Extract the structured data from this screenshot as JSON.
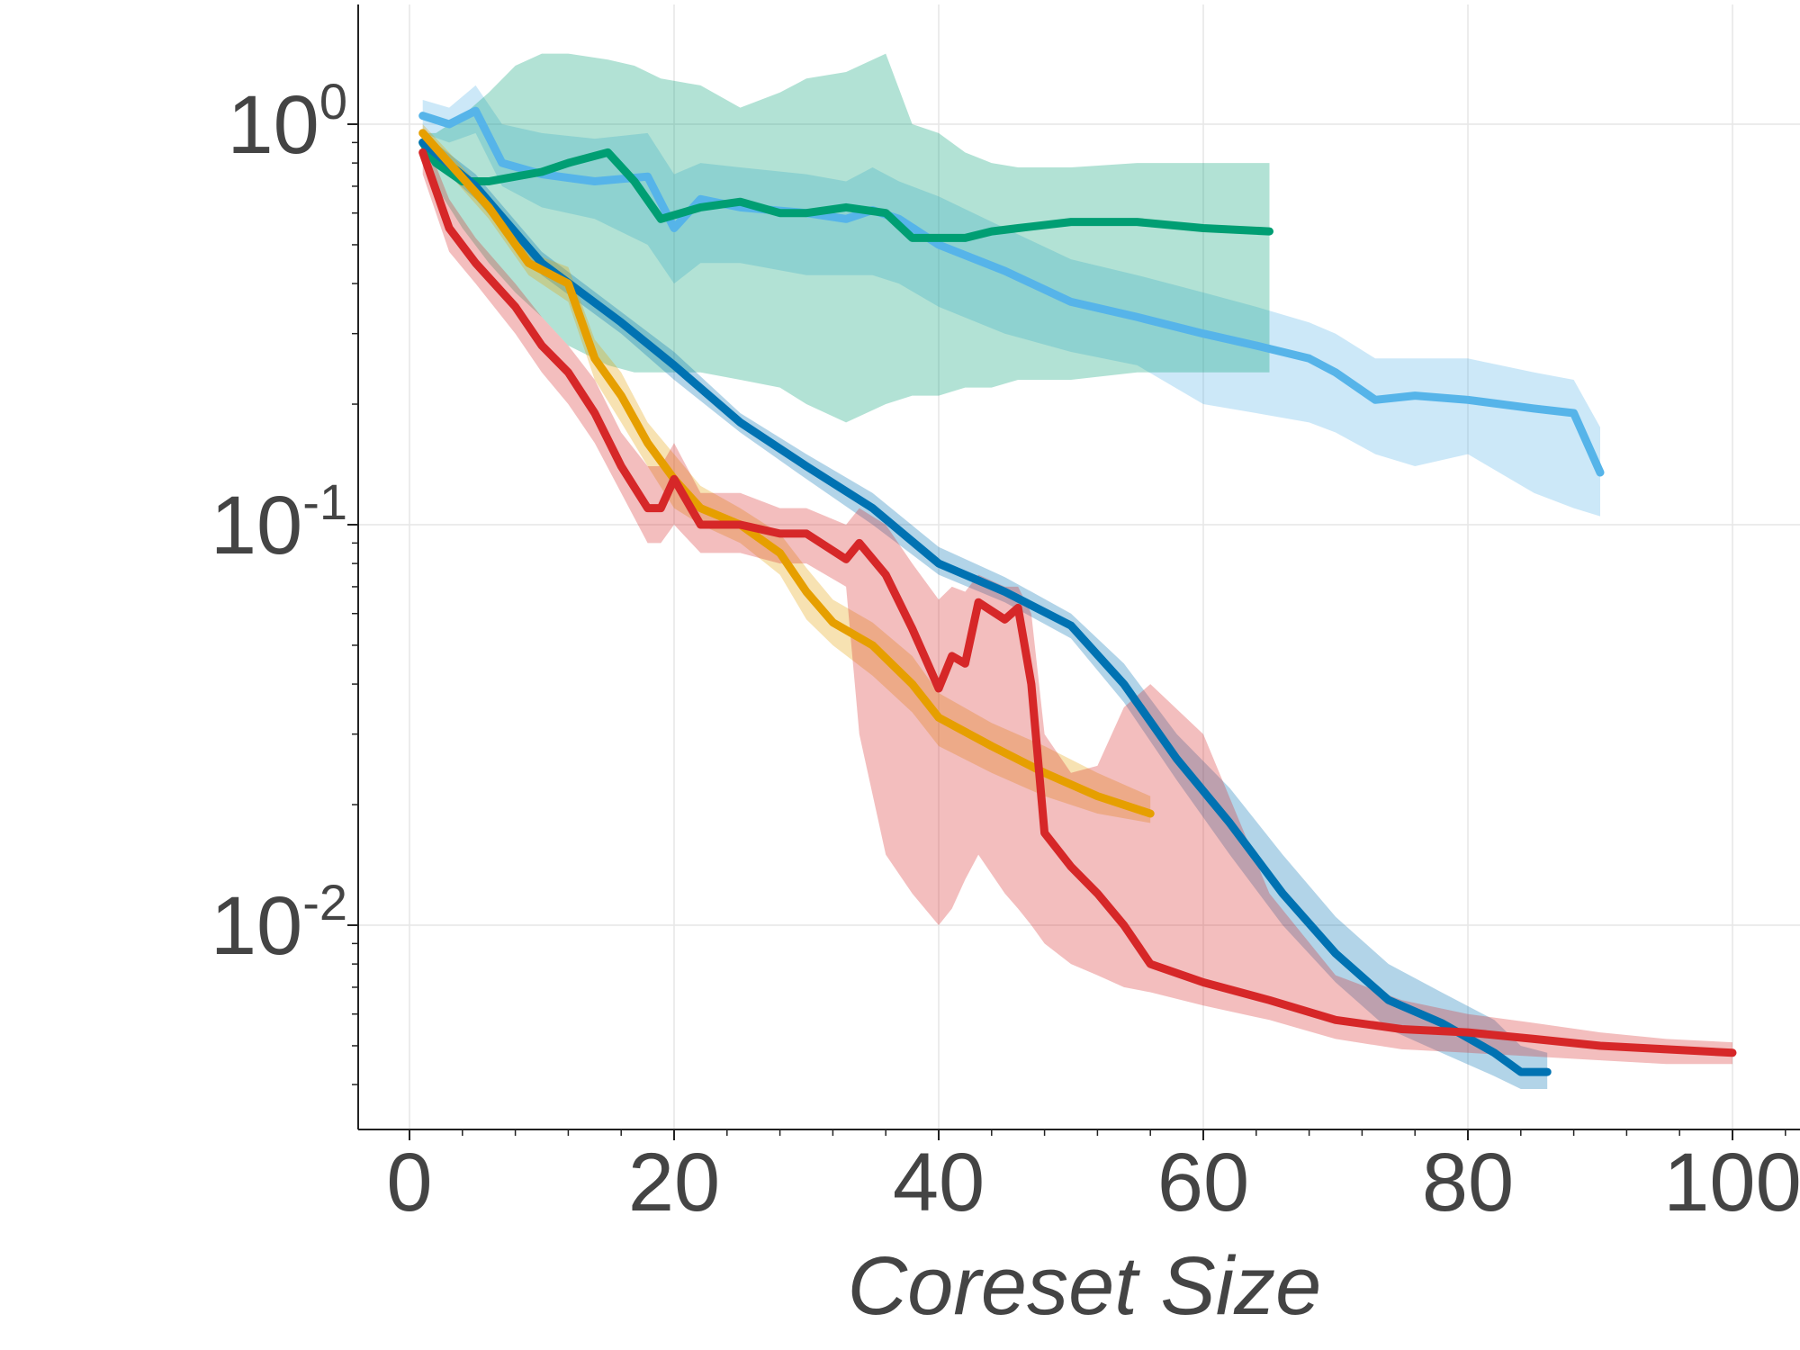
{
  "chart_data": {
    "type": "line",
    "title": "",
    "xlabel": "Coreset Size",
    "ylabel": "",
    "xlim": [
      -4,
      105
    ],
    "ylim": [
      0.0035,
      2.1
    ],
    "y_scale": "log",
    "grid": true,
    "legend": "none",
    "x_ticks": [
      0,
      20,
      40,
      60,
      80,
      100
    ],
    "x_tick_labels": [
      "0",
      "20",
      "40",
      "60",
      "80",
      "100"
    ],
    "y_ticks": [
      1,
      0.1,
      0.01
    ],
    "y_tick_labels": [
      {
        "base": "10",
        "exp": "0"
      },
      {
        "base": "10",
        "exp": "-1"
      },
      {
        "base": "10",
        "exp": "-2"
      }
    ],
    "series": [
      {
        "color": "#56b4e9",
        "x": [
          1,
          3,
          5,
          7,
          10,
          14,
          18,
          20,
          22,
          25,
          30,
          33,
          35,
          37,
          40,
          45,
          50,
          55,
          60,
          64,
          68,
          70,
          73,
          76,
          80,
          85,
          88,
          90
        ],
        "y": [
          1.05,
          1.0,
          1.08,
          0.8,
          0.75,
          0.72,
          0.74,
          0.55,
          0.65,
          0.62,
          0.6,
          0.58,
          0.61,
          0.58,
          0.5,
          0.43,
          0.36,
          0.33,
          0.3,
          0.28,
          0.26,
          0.24,
          0.205,
          0.21,
          0.205,
          0.195,
          0.19,
          0.135
        ],
        "lower": [
          0.95,
          0.9,
          0.95,
          0.7,
          0.62,
          0.58,
          0.5,
          0.4,
          0.45,
          0.45,
          0.42,
          0.42,
          0.42,
          0.4,
          0.35,
          0.3,
          0.27,
          0.25,
          0.2,
          0.19,
          0.18,
          0.17,
          0.15,
          0.14,
          0.15,
          0.12,
          0.11,
          0.105
        ],
        "upper": [
          1.15,
          1.1,
          1.25,
          1.0,
          0.95,
          0.92,
          0.95,
          0.75,
          0.8,
          0.78,
          0.75,
          0.72,
          0.78,
          0.72,
          0.66,
          0.55,
          0.46,
          0.42,
          0.38,
          0.35,
          0.32,
          0.3,
          0.26,
          0.26,
          0.26,
          0.24,
          0.23,
          0.175
        ]
      },
      {
        "color": "#009e73",
        "x": [
          1,
          2,
          4,
          6,
          8,
          10,
          12,
          15,
          17,
          19,
          22,
          25,
          28,
          30,
          33,
          36,
          38,
          40,
          42,
          44,
          46,
          50,
          55,
          60,
          65
        ],
        "y": [
          0.9,
          0.8,
          0.72,
          0.72,
          0.74,
          0.76,
          0.8,
          0.85,
          0.72,
          0.58,
          0.62,
          0.64,
          0.6,
          0.6,
          0.62,
          0.6,
          0.52,
          0.52,
          0.52,
          0.54,
          0.55,
          0.57,
          0.57,
          0.55,
          0.54
        ],
        "lower": [
          0.85,
          0.7,
          0.55,
          0.45,
          0.38,
          0.33,
          0.28,
          0.25,
          0.24,
          0.24,
          0.24,
          0.23,
          0.22,
          0.2,
          0.18,
          0.2,
          0.21,
          0.21,
          0.22,
          0.22,
          0.23,
          0.23,
          0.24,
          0.24,
          0.24
        ],
        "upper": [
          0.95,
          0.95,
          1.05,
          1.2,
          1.4,
          1.5,
          1.5,
          1.45,
          1.4,
          1.3,
          1.25,
          1.1,
          1.2,
          1.3,
          1.35,
          1.5,
          1.0,
          0.95,
          0.85,
          0.8,
          0.78,
          0.78,
          0.8,
          0.8,
          0.8
        ]
      },
      {
        "color": "#0072b2",
        "x": [
          1,
          5,
          10,
          16,
          20,
          25,
          30,
          35,
          40,
          45,
          50,
          54,
          58,
          62,
          66,
          70,
          74,
          78,
          82,
          84,
          86
        ],
        "y": [
          0.9,
          0.7,
          0.45,
          0.32,
          0.25,
          0.18,
          0.14,
          0.11,
          0.08,
          0.068,
          0.056,
          0.04,
          0.026,
          0.018,
          0.012,
          0.0085,
          0.0065,
          0.0057,
          0.0048,
          0.0043,
          0.0043
        ],
        "lower": [
          0.85,
          0.65,
          0.42,
          0.3,
          0.23,
          0.17,
          0.13,
          0.1,
          0.075,
          0.064,
          0.052,
          0.036,
          0.023,
          0.015,
          0.01,
          0.0072,
          0.0055,
          0.0048,
          0.0042,
          0.0039,
          0.0039
        ],
        "upper": [
          0.95,
          0.75,
          0.48,
          0.34,
          0.27,
          0.19,
          0.15,
          0.12,
          0.088,
          0.074,
          0.06,
          0.045,
          0.03,
          0.022,
          0.015,
          0.0105,
          0.008,
          0.0068,
          0.0058,
          0.005,
          0.0048
        ]
      },
      {
        "color": "#e69f00",
        "x": [
          1,
          3,
          6,
          9,
          12,
          14,
          16,
          18,
          20,
          22,
          25,
          28,
          30,
          32,
          35,
          38,
          40,
          44,
          48,
          52,
          56
        ],
        "y": [
          0.95,
          0.8,
          0.62,
          0.45,
          0.4,
          0.26,
          0.21,
          0.16,
          0.13,
          0.11,
          0.1,
          0.085,
          0.068,
          0.057,
          0.05,
          0.04,
          0.033,
          0.028,
          0.024,
          0.021,
          0.019
        ],
        "lower": [
          0.9,
          0.75,
          0.58,
          0.42,
          0.36,
          0.23,
          0.18,
          0.14,
          0.11,
          0.1,
          0.09,
          0.075,
          0.058,
          0.05,
          0.042,
          0.034,
          0.028,
          0.024,
          0.021,
          0.019,
          0.018
        ],
        "upper": [
          1.0,
          0.85,
          0.66,
          0.48,
          0.44,
          0.29,
          0.24,
          0.18,
          0.15,
          0.125,
          0.11,
          0.095,
          0.078,
          0.065,
          0.057,
          0.047,
          0.038,
          0.032,
          0.028,
          0.024,
          0.021
        ]
      },
      {
        "color": "#d62728",
        "x": [
          1,
          3,
          5,
          8,
          10,
          12,
          14,
          16,
          18,
          19,
          20,
          22,
          25,
          28,
          30,
          33,
          34,
          36,
          38,
          40,
          41,
          42,
          43,
          45,
          46,
          47,
          48,
          50,
          52,
          54,
          56,
          60,
          65,
          70,
          75,
          80,
          85,
          90,
          95,
          100
        ],
        "y": [
          0.85,
          0.55,
          0.45,
          0.35,
          0.28,
          0.24,
          0.19,
          0.14,
          0.11,
          0.11,
          0.13,
          0.1,
          0.1,
          0.095,
          0.095,
          0.082,
          0.09,
          0.075,
          0.055,
          0.039,
          0.047,
          0.045,
          0.064,
          0.058,
          0.062,
          0.04,
          0.017,
          0.014,
          0.012,
          0.01,
          0.008,
          0.0072,
          0.0065,
          0.0058,
          0.0055,
          0.0054,
          0.0052,
          0.005,
          0.0049,
          0.0048
        ],
        "lower": [
          0.75,
          0.48,
          0.4,
          0.3,
          0.24,
          0.2,
          0.16,
          0.12,
          0.09,
          0.09,
          0.1,
          0.085,
          0.085,
          0.08,
          0.08,
          0.07,
          0.03,
          0.015,
          0.012,
          0.01,
          0.011,
          0.013,
          0.015,
          0.012,
          0.011,
          0.01,
          0.009,
          0.008,
          0.0075,
          0.007,
          0.0068,
          0.0063,
          0.0058,
          0.0052,
          0.0049,
          0.0048,
          0.0047,
          0.0046,
          0.0045,
          0.0045
        ],
        "upper": [
          0.95,
          0.65,
          0.52,
          0.4,
          0.33,
          0.28,
          0.23,
          0.17,
          0.14,
          0.14,
          0.16,
          0.12,
          0.12,
          0.11,
          0.11,
          0.1,
          0.11,
          0.1,
          0.08,
          0.065,
          0.07,
          0.068,
          0.075,
          0.07,
          0.07,
          0.06,
          0.03,
          0.024,
          0.025,
          0.035,
          0.04,
          0.03,
          0.012,
          0.0075,
          0.0065,
          0.006,
          0.0057,
          0.0054,
          0.0052,
          0.0051
        ]
      }
    ]
  }
}
